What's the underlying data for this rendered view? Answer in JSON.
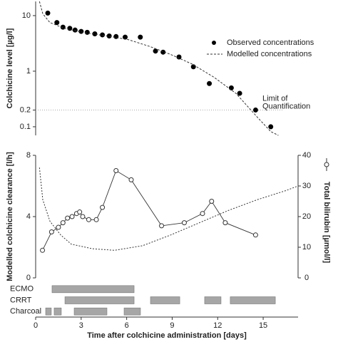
{
  "chart_data": [
    {
      "type": "line",
      "ylog": true,
      "xlim": [
        0,
        17.3
      ],
      "ylim": [
        0.07,
        18
      ],
      "yticks": [
        0.1,
        0.2,
        1,
        10
      ],
      "ylabel": "Colchicine level [µg/l]",
      "legend": "upper right",
      "annotation": {
        "text": [
          "Limit of",
          "Quantification"
        ],
        "y": 0.2
      },
      "series": [
        {
          "name": "Observed concentrations",
          "mode": "markers",
          "color": "#000000",
          "x": [
            0.8,
            1.4,
            1.8,
            2.25,
            2.6,
            3.0,
            3.4,
            3.9,
            4.4,
            4.85,
            5.3,
            5.9,
            6.9,
            7.9,
            8.4,
            9.45,
            10.4,
            11.45,
            12.9,
            13.45,
            14.5,
            15.5
          ],
          "values": [
            11.1,
            7.5,
            6.2,
            5.9,
            5.5,
            5.2,
            5.0,
            4.7,
            4.5,
            4.3,
            4.2,
            4.1,
            4.1,
            2.3,
            2.2,
            1.8,
            1.2,
            0.6,
            0.5,
            0.4,
            0.2,
            0.1
          ]
        },
        {
          "name": "Modelled concentrations",
          "mode": "dashed",
          "color": "#333333",
          "x": [
            0.25,
            0.47,
            0.94,
            1.9,
            3.3,
            4.7,
            6.1,
            7.5,
            8.9,
            10.3,
            11.75,
            13.2,
            14.6,
            15.5,
            16.0
          ],
          "values": [
            18,
            10.8,
            7.5,
            5.9,
            4.9,
            4.3,
            3.7,
            2.8,
            2.0,
            1.35,
            0.78,
            0.4,
            0.15,
            0.082,
            0.07
          ]
        }
      ]
    },
    {
      "type": "line",
      "xlim": [
        0,
        17.3
      ],
      "ylim": [
        0,
        8
      ],
      "yticks": [
        0,
        4,
        8
      ],
      "y2lim": [
        0,
        40
      ],
      "y2ticks": [
        0,
        10,
        20,
        30,
        40
      ],
      "ylabel": "Modelled colchicine clearance [l/h]",
      "y2label": "Total bilirubin [µmol/l]",
      "series": [
        {
          "mode": "dotted",
          "color": "#333333",
          "axis": "y",
          "x": [
            0.25,
            0.47,
            0.94,
            1.65,
            2.35,
            3.76,
            5.2,
            7.05,
            8.9,
            10.8,
            12.7,
            14.6,
            16.5,
            17.3
          ],
          "values": [
            7.2,
            5.1,
            3.7,
            2.8,
            2.2,
            1.9,
            1.8,
            2.1,
            2.8,
            3.6,
            4.4,
            5.1,
            5.7,
            6.0
          ]
        },
        {
          "mode": "open-markers",
          "color": "#333333",
          "axis": "y2",
          "x": [
            0.45,
            1.05,
            1.5,
            1.8,
            2.1,
            2.4,
            2.7,
            2.9,
            3.1,
            3.5,
            4.0,
            4.4,
            5.3,
            6.3,
            8.3,
            9.8,
            11.0,
            11.6,
            12.5,
            14.5
          ],
          "values": [
            9,
            15,
            16.5,
            18,
            19.5,
            20,
            21,
            21.5,
            20,
            19,
            19,
            23,
            35,
            32,
            17,
            18,
            21,
            25,
            18,
            14
          ]
        }
      ]
    },
    {
      "type": "gantt",
      "xlim": [
        0,
        17.3
      ],
      "xticks": [
        0,
        3,
        6,
        9,
        12,
        15
      ],
      "color": "#a6a6a6",
      "xlabel": "Time after colchicine administration [days]",
      "rows": [
        {
          "name": "ECMO",
          "intervals": [
            [
              1.08,
              6.49
            ]
          ]
        },
        {
          "name": "CRRT",
          "intervals": [
            [
              1.93,
              6.49
            ],
            [
              7.57,
              9.5
            ],
            [
              11.14,
              12.22
            ],
            [
              12.83,
              15.8
            ]
          ]
        },
        {
          "name": "Charcoal",
          "intervals": [
            [
              0.66,
              1.03
            ],
            [
              1.22,
              1.69
            ],
            [
              2.54,
              4.7
            ],
            [
              5.83,
              6.91
            ]
          ]
        }
      ]
    }
  ]
}
